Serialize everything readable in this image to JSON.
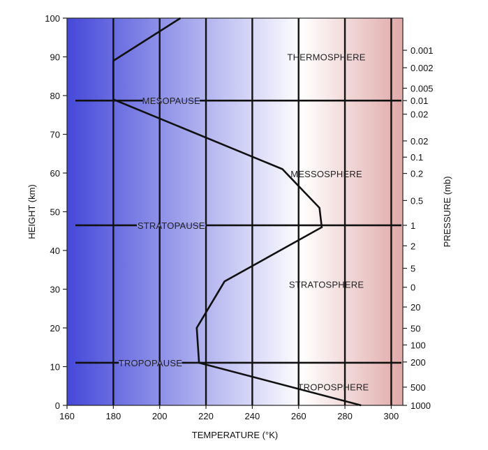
{
  "chart_data": {
    "type": "line",
    "xlabel": "TEMPERATURE (°K)",
    "ylabel": "HEIGHT (km)",
    "y2label": "PRESSURE (mb)",
    "xlim": [
      160,
      305
    ],
    "ylim": [
      0,
      100
    ],
    "x_ticks": [
      160,
      180,
      200,
      220,
      240,
      260,
      280,
      300
    ],
    "y_ticks": [
      0,
      10,
      20,
      30,
      40,
      50,
      60,
      70,
      80,
      90,
      100
    ],
    "grid": "vertical",
    "background": "gradient blue-white-pink",
    "series": [
      {
        "points": [
          {
            "x": 287,
            "y": 0
          },
          {
            "x": 217,
            "y": 11
          },
          {
            "x": 216,
            "y": 20
          },
          {
            "x": 228,
            "y": 32
          },
          {
            "x": 270,
            "y": 46
          },
          {
            "x": 269,
            "y": 51
          },
          {
            "x": 253,
            "y": 61
          },
          {
            "x": 180,
            "y": 79
          },
          {
            "x": 180,
            "y": 89
          },
          {
            "x": 209,
            "y": 100
          }
        ]
      }
    ],
    "pressure_ticks": [
      {
        "label": "0.001",
        "height": 91.7
      },
      {
        "label": "0.002",
        "height": 87.2
      },
      {
        "label": "0.005",
        "height": 81.9
      },
      {
        "label": "0.01",
        "height": 78.7
      },
      {
        "label": "0.02",
        "height": 75.2
      },
      {
        "label": "0.02",
        "height": 68.3
      },
      {
        "label": "0.1",
        "height": 64.1
      },
      {
        "label": "0.2",
        "height": 59.9
      },
      {
        "label": "0.5",
        "height": 52.9
      },
      {
        "label": "1",
        "height": 46.5
      },
      {
        "label": "2",
        "height": 41.2
      },
      {
        "label": "5",
        "height": 35.4
      },
      {
        "label": "0",
        "height": 30.5
      },
      {
        "label": "20",
        "height": 25.4
      },
      {
        "label": "50",
        "height": 19.9
      },
      {
        "label": "100",
        "height": 15.6
      },
      {
        "label": "200",
        "height": 11.2
      },
      {
        "label": "500",
        "height": 4.7
      },
      {
        "label": "1000",
        "height": 0
      }
    ],
    "layer_lines": [
      {
        "name": "MESOPAUSE",
        "height": 78.7
      },
      {
        "name": "STRATOPAUSE",
        "height": 46.5
      },
      {
        "name": "TROPOPAUSE",
        "height": 11.0
      }
    ],
    "region_labels": [
      {
        "text": "THERMOSPHERE",
        "x": 272,
        "y": 90
      },
      {
        "text": "MESSOSPHERE",
        "x": 272,
        "y": 59.8
      },
      {
        "text": "STRATOSPHERE",
        "x": 272,
        "y": 31.3
      },
      {
        "text": "TROPOSPHERE",
        "x": 275,
        "y": 4.8
      }
    ]
  },
  "colors": {
    "gradient_left": "#4448d8",
    "gradient_mid": "#ffffff",
    "gradient_right": "#e0a9a8",
    "line": "#111111"
  }
}
